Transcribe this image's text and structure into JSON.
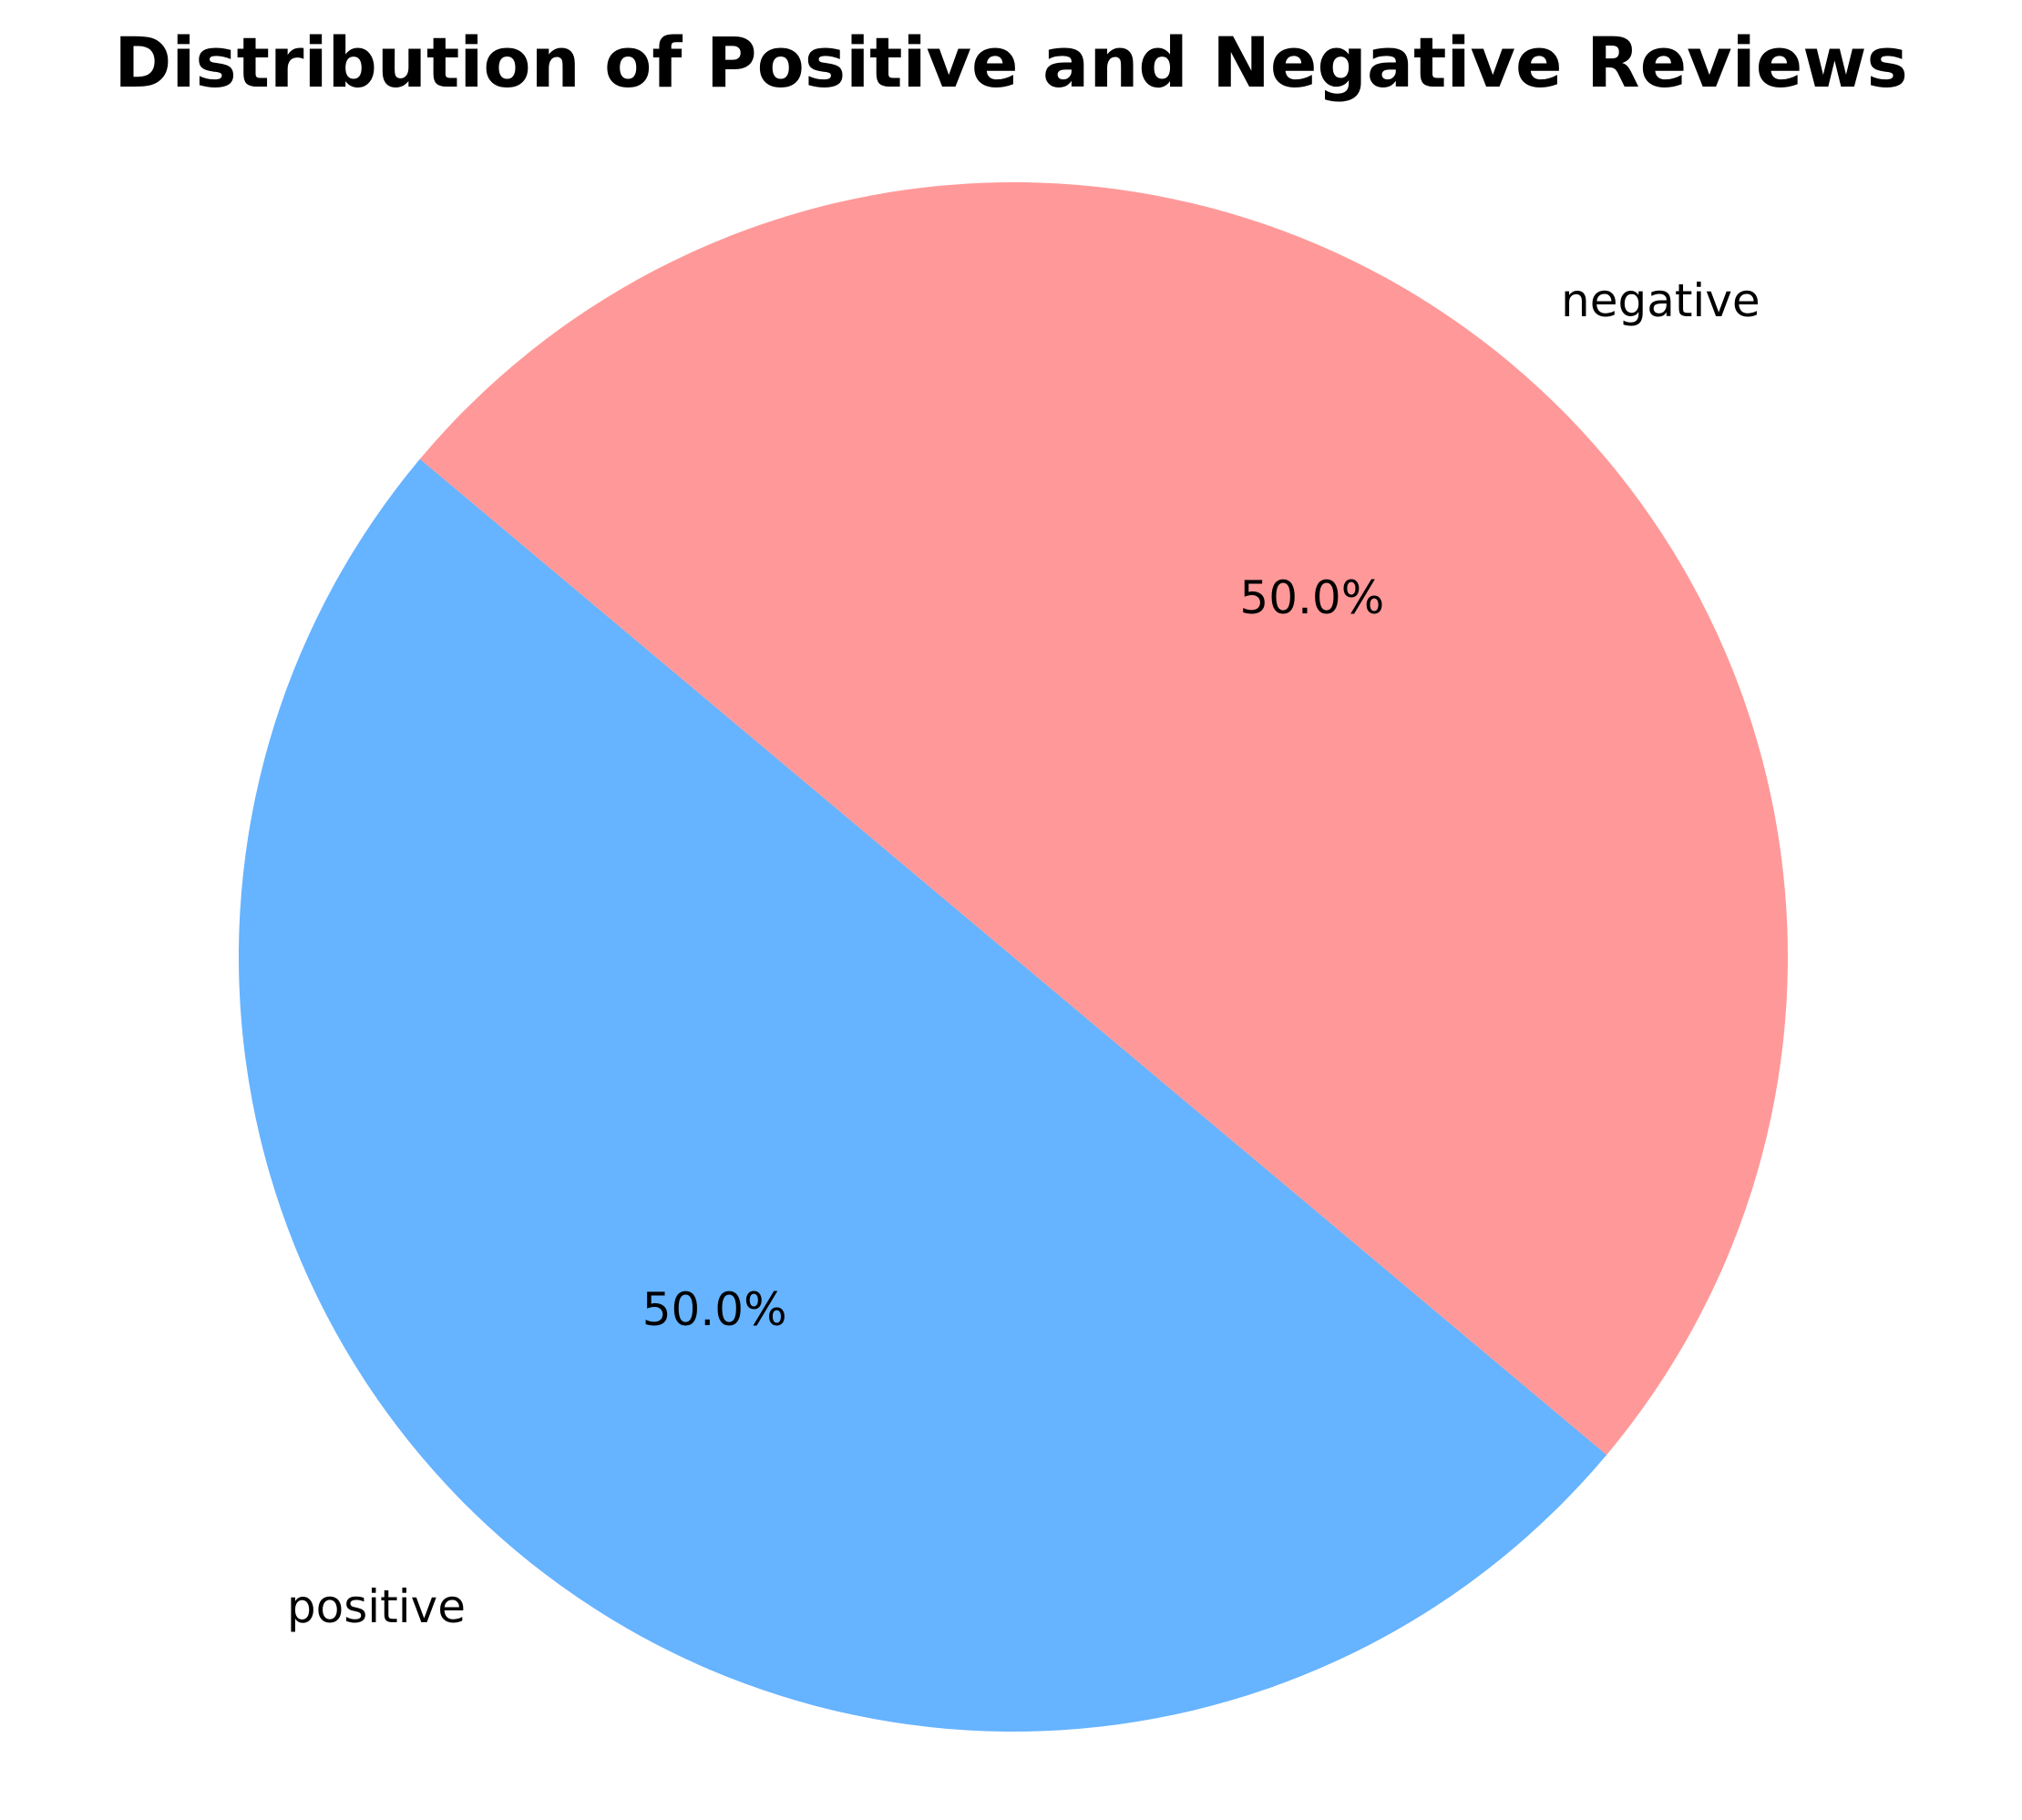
{
  "chart_data": {
    "type": "pie",
    "title": "Distribution of Positive and Negative Reviews",
    "categories": [
      "positive",
      "negative"
    ],
    "values": [
      50,
      50
    ],
    "percent_labels": [
      "50.0%",
      "50.0%"
    ],
    "colors": [
      "#66b3ff",
      "#ff9999"
    ],
    "start_angle_deg": 140,
    "direction": "counterclockwise",
    "legend": "none"
  }
}
